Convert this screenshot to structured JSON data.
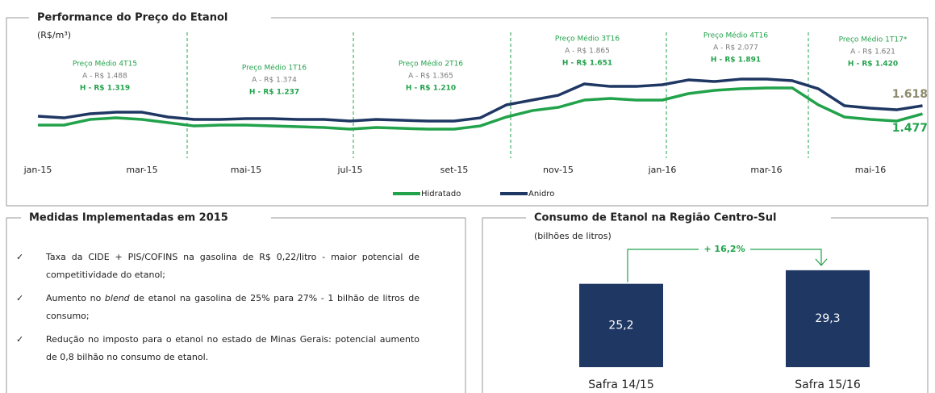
{
  "chart_data": [
    {
      "type": "line",
      "title": "Performance do Preço do Etanol",
      "subtitle": "(R$/m³)",
      "categories": [
        "jan-15",
        null,
        null,
        null,
        "mar-15",
        null,
        null,
        null,
        "mai-15",
        null,
        null,
        null,
        "jul-15",
        null,
        null,
        null,
        "set-15",
        null,
        null,
        null,
        "nov-15",
        null,
        null,
        null,
        "jan-16",
        null,
        null,
        null,
        "mar-16",
        null,
        null,
        null,
        "mai-16",
        null,
        null
      ],
      "ylim": [
        600,
        2600
      ],
      "series": [
        {
          "name": "Hidratado",
          "color": "#22a24b",
          "values": [
            1280,
            1280,
            1378,
            1406,
            1378,
            1322,
            1265,
            1280,
            1280,
            1265,
            1251,
            1237,
            1209,
            1237,
            1223,
            1209,
            1209,
            1265,
            1421,
            1533,
            1590,
            1717,
            1745,
            1717,
            1717,
            1830,
            1886,
            1914,
            1928,
            1928,
            1632,
            1421,
            1378,
            1350,
            1477
          ],
          "value_labels": [
            null,
            null,
            null,
            null,
            null,
            null,
            null,
            null,
            null,
            null,
            null,
            null,
            null,
            null,
            null,
            null,
            null,
            null,
            null,
            null,
            null,
            null,
            null,
            null,
            null,
            null,
            null,
            null,
            null,
            null,
            null,
            null,
            null,
            null,
            "1.477"
          ]
        },
        {
          "name": "Anidro",
          "color": "#1f3763",
          "values": [
            1435,
            1406,
            1477,
            1505,
            1505,
            1421,
            1378,
            1378,
            1392,
            1392,
            1378,
            1378,
            1350,
            1378,
            1364,
            1350,
            1350,
            1406,
            1632,
            1717,
            1801,
            1999,
            1956,
            1956,
            1985,
            2069,
            2041,
            2083,
            2083,
            2055,
            1914,
            1618,
            1576,
            1547,
            1618
          ],
          "value_labels": [
            null,
            null,
            null,
            null,
            null,
            null,
            null,
            null,
            null,
            null,
            null,
            null,
            null,
            null,
            null,
            null,
            null,
            null,
            null,
            null,
            null,
            null,
            null,
            null,
            null,
            null,
            null,
            null,
            null,
            null,
            null,
            null,
            null,
            null,
            "1.618"
          ]
        }
      ],
      "annotations": [
        [
          "Preço Médio 4T15",
          "A - R$ 1.488",
          "H - R$ 1.319"
        ],
        [
          "Preço Médio 1T16",
          "A - R$ 1.374",
          "H - R$ 1.237"
        ],
        [
          "Preço Médio 2T16",
          "A - R$ 1.365",
          "H - R$ 1.210"
        ],
        [
          "Preço Médio 3T16",
          "A - R$ 1.865",
          "H - R$ 1.651"
        ],
        [
          "Preço Médio 4T16",
          "A - R$ 2.077",
          "H - R$ 1.891"
        ],
        [
          "Preço Médio 1T17*",
          "A - R$ 1.621",
          "H - R$ 1.420"
        ]
      ]
    },
    {
      "type": "bar",
      "title": "Consumo de Etanol na Região Centro-Sul",
      "subtitle": "(bilhões de litros)",
      "categories": [
        "Safra 14/15",
        "Safra 15/16"
      ],
      "values": [
        25.2,
        29.3
      ],
      "value_labels": [
        "25,2",
        "29,3"
      ],
      "color": "#1f3763",
      "ylim": [
        0,
        30
      ],
      "annotation": "+ 16,2%"
    }
  ],
  "measures": {
    "title": "Medidas Implementadas em 2015",
    "items": [
      [
        "Taxa da CIDE + PIS/COFINS na gasolina de R$ 0,22/litro - maior potencial de competitividade do etanol;"
      ],
      [
        "Aumento no ",
        "blend",
        " de etanol na gasolina de 25% para 27% - 1 bilhão de litros de consumo;"
      ],
      [
        "Redução no imposto para o etanol no estado de Minas Gerais: potencial aumento de 0,8 bilhão no consumo de etanol."
      ]
    ]
  }
}
